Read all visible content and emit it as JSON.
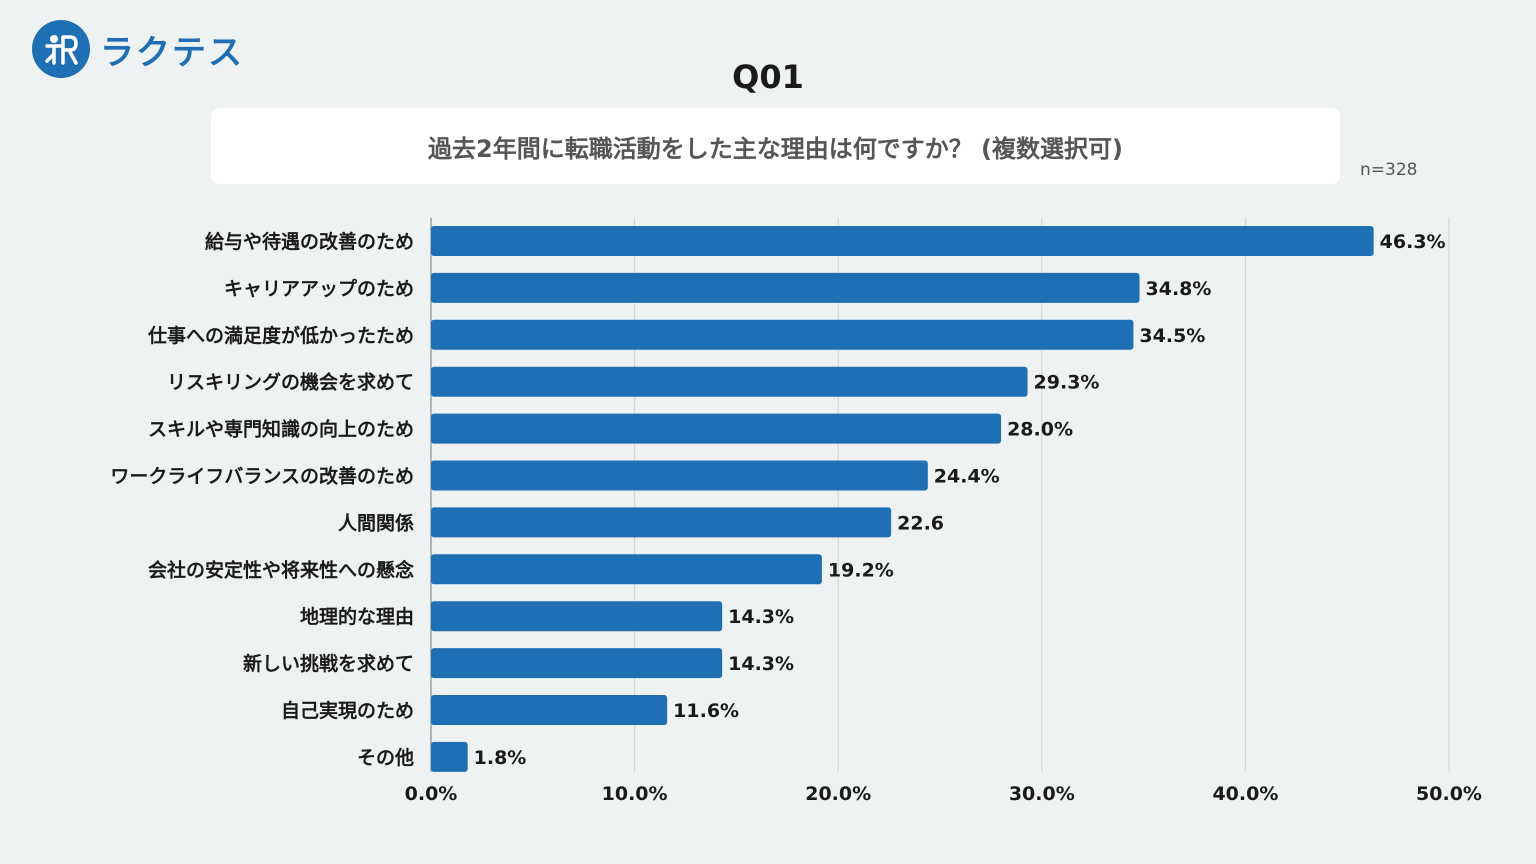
{
  "brand": {
    "logo_text": "ラクテス",
    "accent_color": "#1f6fb4"
  },
  "header": {
    "question_no": "Q01",
    "question": "過去2年間に転職活動をした主な理由は何ですか？ (複数選択可)",
    "sample_size": "n=328"
  },
  "chart_data": {
    "type": "bar",
    "orientation": "horizontal",
    "title": "過去2年間に転職活動をした主な理由は何ですか？ (複数選択可)",
    "xlabel": "",
    "ylabel": "",
    "xlim": [
      0,
      50
    ],
    "grid": true,
    "bar_color": "#1f6fb4",
    "categories": [
      "給与や待遇の改善のため",
      "キャリアアップのため",
      "仕事への満足度が低かったため",
      "リスキリングの機会を求めて",
      "スキルや専門知識の向上のため",
      "ワークライフバランスの改善のため",
      "人間関係",
      "会社の安定性や将来性への懸念",
      "地理的な理由",
      "新しい挑戦を求めて",
      "自己実現のため",
      "その他"
    ],
    "values": [
      46.3,
      34.8,
      34.5,
      29.3,
      28.0,
      24.4,
      22.6,
      19.2,
      14.3,
      14.3,
      11.6,
      1.8
    ],
    "value_labels": [
      "46.3%",
      "34.8%",
      "34.5%",
      "29.3%",
      "28.0%",
      "24.4%",
      "22.6",
      "19.2%",
      "14.3%",
      "14.3%",
      "11.6%",
      "1.8%"
    ],
    "x_ticks": [
      0,
      10,
      20,
      30,
      40,
      50
    ],
    "x_tick_labels": [
      "0.0%",
      "10.0%",
      "20.0%",
      "30.0%",
      "40.0%",
      "50.0%"
    ]
  }
}
